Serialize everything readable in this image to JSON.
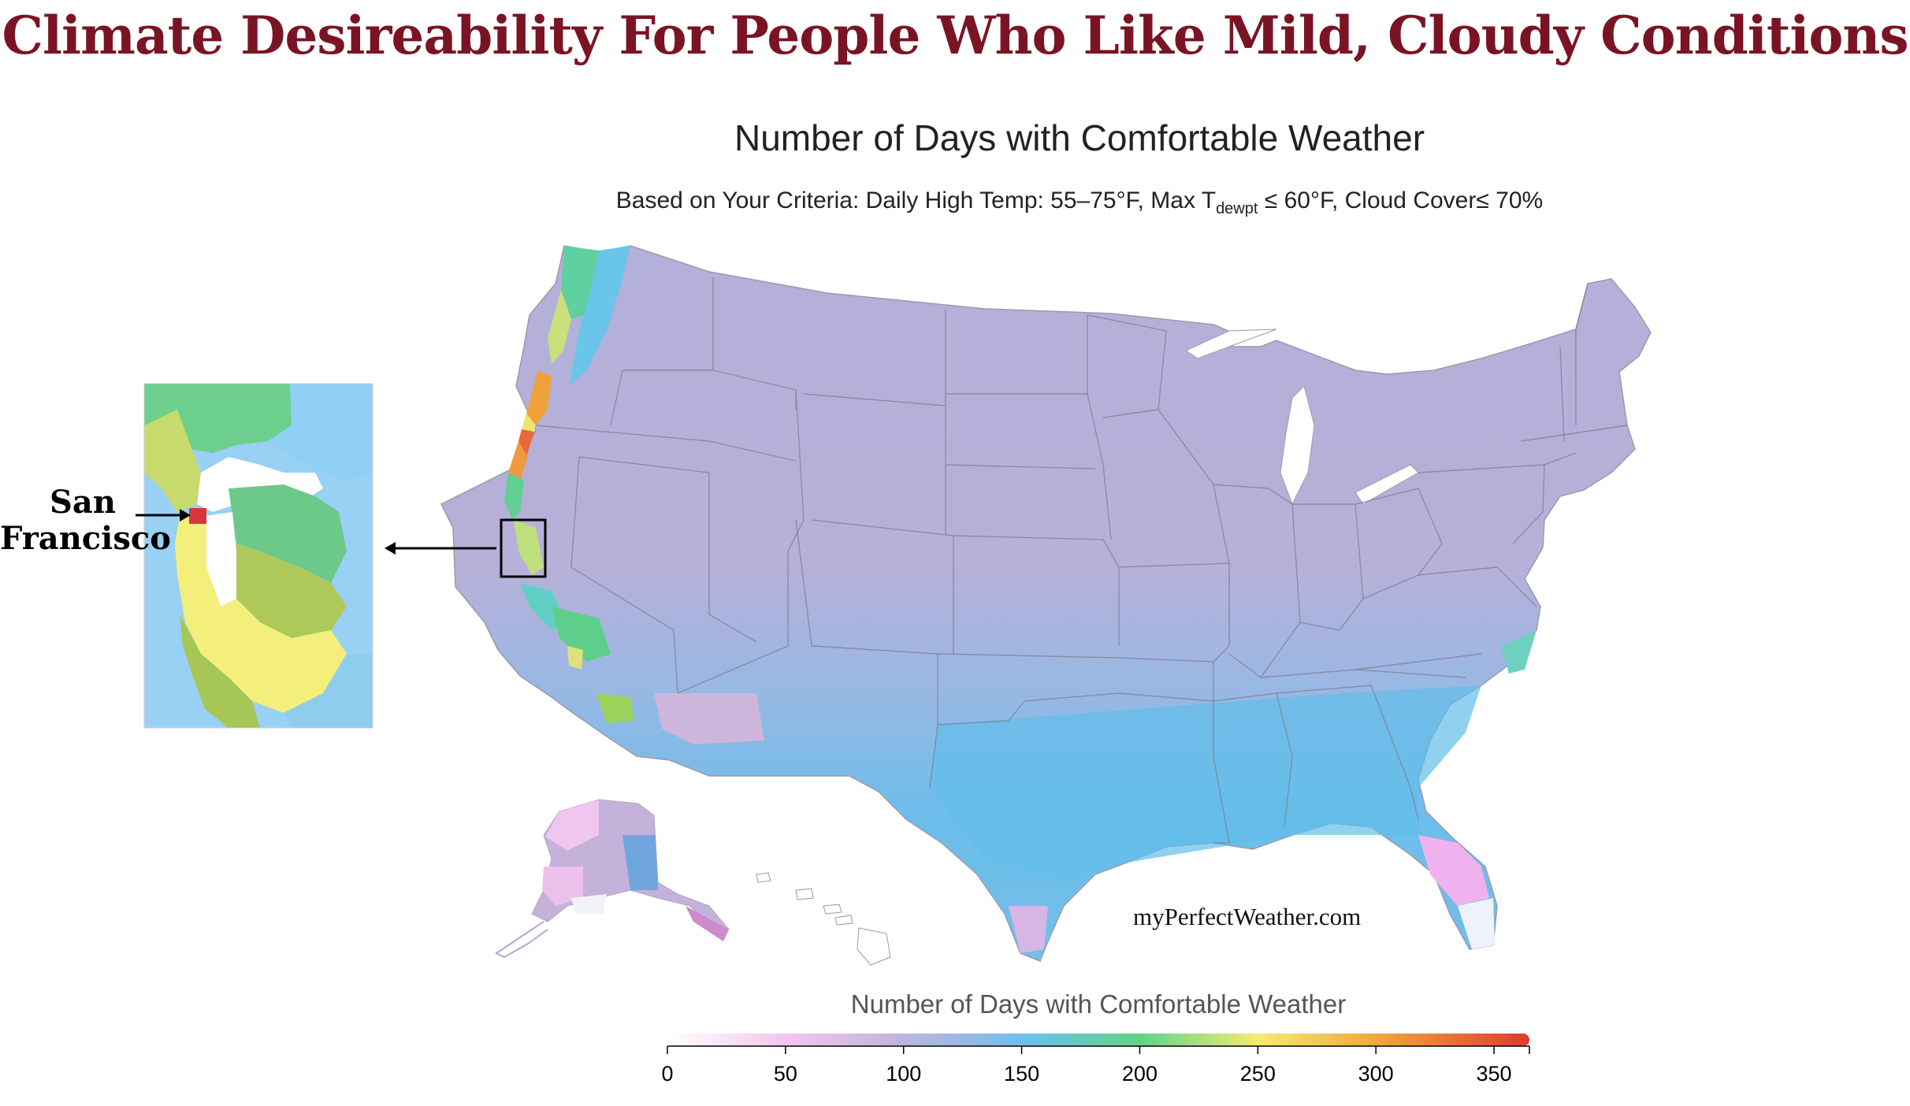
{
  "headline": "Climate Desireability For People Who Like Mild, Cloudy Conditions",
  "map": {
    "title": "Number of Days with Comfortable Weather",
    "subtitle_prefix": "Based on Your Criteria: Daily High Temp: 55–75°F, Max T",
    "subtitle_sub": "dewpt",
    "subtitle_suffix": " ≤ 60°F, Cloud Cover≤ 70%"
  },
  "inset": {
    "label_line1": "San",
    "label_line2": "Francisco"
  },
  "watermark": "myPerfectWeather.com",
  "legend": {
    "title": "Number of Days with Comfortable Weather",
    "ticks": [
      {
        "value": 0,
        "label": "0"
      },
      {
        "value": 50,
        "label": "50"
      },
      {
        "value": 100,
        "label": "100"
      },
      {
        "value": 150,
        "label": "150"
      },
      {
        "value": 200,
        "label": "200"
      },
      {
        "value": 250,
        "label": "250"
      },
      {
        "value": 300,
        "label": "300"
      },
      {
        "value": 350,
        "label": "350"
      }
    ],
    "range": [
      0,
      365
    ],
    "color_stops": [
      {
        "value": 0,
        "color": "#ffffff"
      },
      {
        "value": 50,
        "color": "#f2c6ee"
      },
      {
        "value": 100,
        "color": "#bfb4dc"
      },
      {
        "value": 150,
        "color": "#6dc0ee"
      },
      {
        "value": 200,
        "color": "#5fd38a"
      },
      {
        "value": 250,
        "color": "#f4ec70"
      },
      {
        "value": 300,
        "color": "#f2a83c"
      },
      {
        "value": 365,
        "color": "#e03a30"
      }
    ]
  },
  "colors": {
    "headline": "#7a1424",
    "land_base": "#b4b2da",
    "land_south": "#6fbde9",
    "coast_green": "#63cf95",
    "coast_yellow": "#e6e576",
    "coast_orange": "#f1a13c",
    "florida_pink": "#f0b4ee",
    "sf_red": "#d8343a"
  }
}
